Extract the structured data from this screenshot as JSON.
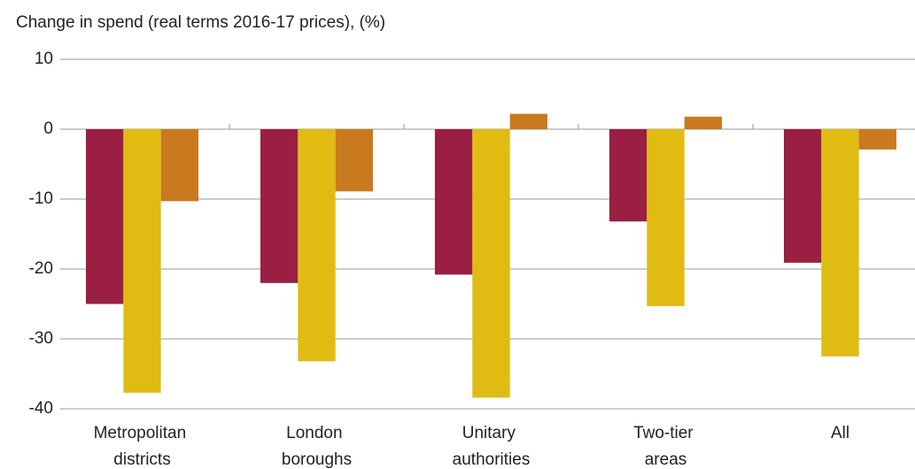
{
  "chart_data": {
    "type": "bar",
    "title": "Change in spend (real terms 2016-17 prices), (%)",
    "categories": [
      "Metropolitan districts",
      "London boroughs",
      "Unitary authorities",
      "Two-tier areas",
      "All"
    ],
    "series": [
      {
        "color": "#9b1f43",
        "values": [
          -25,
          -22,
          -20.8,
          -13.2,
          -19.1
        ]
      },
      {
        "color": "#e0bb12",
        "values": [
          -37.7,
          -33.2,
          -38.4,
          -25.3,
          -32.5
        ]
      },
      {
        "color": "#c97a1f",
        "values": [
          -10.3,
          -8.9,
          2.2,
          1.8,
          -2.9
        ]
      }
    ],
    "ylim": [
      -40,
      10
    ],
    "yticks": [
      10,
      0,
      -10,
      -20,
      -30,
      -40
    ],
    "grid": true
  }
}
